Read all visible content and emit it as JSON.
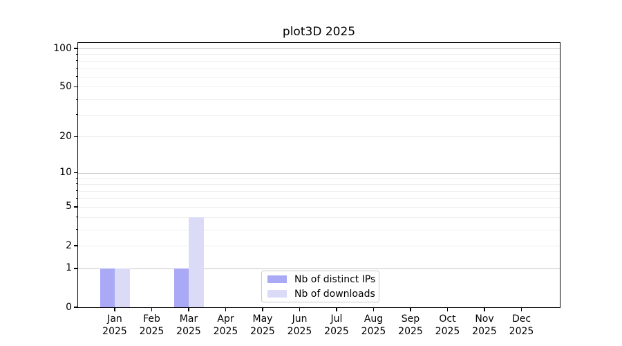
{
  "figure": {
    "background": "#ffffff"
  },
  "chart_data": {
    "type": "bar",
    "title": "plot3D 2025",
    "categories": [
      "Jan",
      "Feb",
      "Mar",
      "Apr",
      "May",
      "Jun",
      "Jul",
      "Aug",
      "Sep",
      "Oct",
      "Nov",
      "Dec"
    ],
    "category_year": "2025",
    "series": [
      {
        "name": "Nb of distinct IPs",
        "color": "#a9a9f5",
        "values": [
          1,
          0,
          1,
          0,
          0,
          0,
          0,
          0,
          0,
          0,
          0,
          0
        ]
      },
      {
        "name": "Nb of downloads",
        "color": "#dbdbf8",
        "values": [
          1,
          0,
          4,
          0,
          0,
          0,
          0,
          0,
          0,
          0,
          0,
          0
        ]
      }
    ],
    "yscale": "log1p",
    "ylim": [
      0,
      110
    ],
    "y_ticks": [
      0,
      1,
      2,
      5,
      10,
      20,
      50,
      100
    ],
    "y_major_gridlines": [
      1,
      10,
      100
    ],
    "y_minor_gridlines": [
      2,
      3,
      4,
      5,
      6,
      7,
      8,
      9,
      20,
      30,
      40,
      50,
      60,
      70,
      80,
      90
    ],
    "grid": true,
    "legend": {
      "position": "lower center"
    },
    "colors": {
      "axis": "#000000",
      "major_grid": "#c6c6c6",
      "minor_grid": "#ededed",
      "legend_border": "#c9c9c9"
    }
  }
}
